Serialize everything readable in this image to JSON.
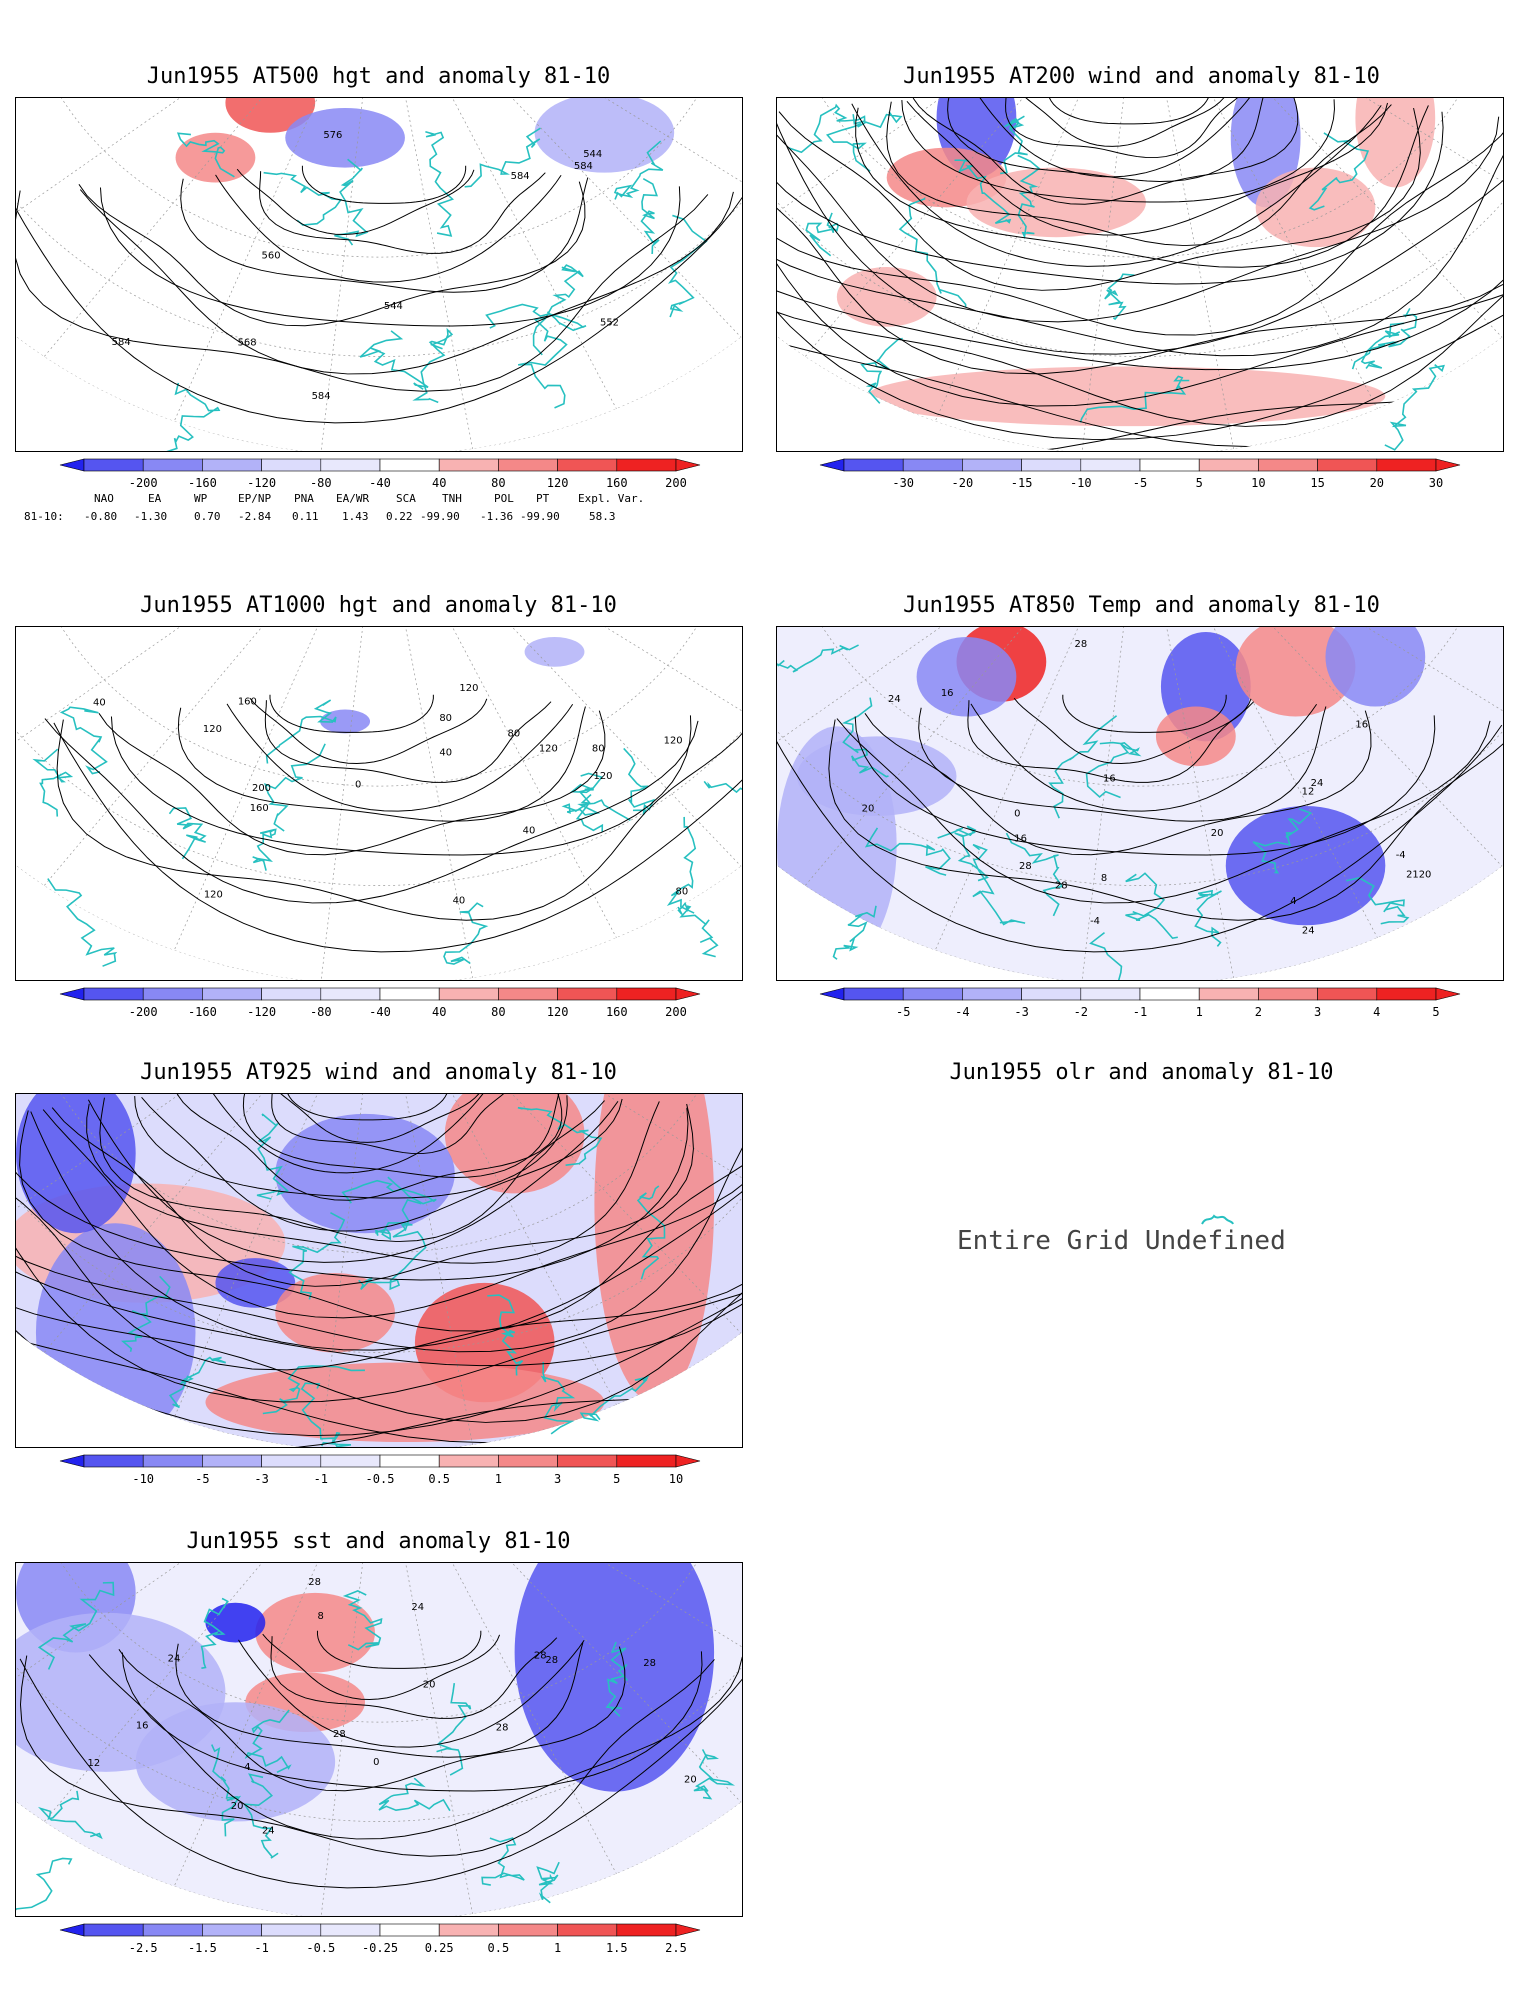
{
  "panels": [
    {
      "id": "p1",
      "title": "Jun1955 AT500 hgt and anomaly 81-10",
      "contours": [
        "584",
        "544",
        "552",
        "560",
        "568",
        "576",
        "584",
        "584",
        "584",
        "544"
      ],
      "colorbar": [
        "-200",
        "-160",
        "-120",
        "-80",
        "-40",
        "40",
        "80",
        "120",
        "160",
        "200"
      ]
    },
    {
      "id": "p2",
      "title": "Jun1955 AT200 wind and anomaly 81-10",
      "contours": [],
      "colorbar": [
        "-30",
        "-20",
        "-15",
        "-10",
        "-5",
        "5",
        "10",
        "15",
        "20",
        "30"
      ]
    },
    {
      "id": "p3",
      "title": "Jun1955 AT1000 hgt and anomaly 81-10",
      "contours": [
        "120",
        "160",
        "200",
        "160",
        "120",
        "120",
        "80",
        "80",
        "80",
        "120",
        "80",
        "40",
        "40",
        "0",
        "40",
        "120",
        "120",
        "40"
      ],
      "colorbar": [
        "-200",
        "-160",
        "-120",
        "-80",
        "-40",
        "40",
        "80",
        "120",
        "160",
        "200"
      ]
    },
    {
      "id": "p4",
      "title": "Jun1955 AT850 Temp and anomaly 81-10",
      "contours": [
        "20",
        "-4",
        "-4",
        "0",
        "4",
        "8",
        "12",
        "16",
        "24",
        "28",
        "28",
        "24",
        "16",
        "16",
        "24",
        "20",
        "16",
        "28",
        "2120"
      ],
      "colorbar": [
        "-5",
        "-4",
        "-3",
        "-2",
        "-1",
        "1",
        "2",
        "3",
        "4",
        "5"
      ]
    },
    {
      "id": "p5",
      "title": "Jun1955 AT925 wind and anomaly 81-10",
      "contours": [],
      "colorbar": [
        "-10",
        "-5",
        "-3",
        "-1",
        "-0.5",
        "0.5",
        "1",
        "3",
        "5",
        "10"
      ]
    },
    {
      "id": "p6",
      "title": "Jun1955 olr and anomaly 81-10",
      "contours": [],
      "colorbar": []
    },
    {
      "id": "p7",
      "title": "Jun1955 sst and anomaly 81-10",
      "contours": [
        "24",
        "28",
        "28",
        "4",
        "8",
        "12",
        "16",
        "20",
        "24",
        "28",
        "28",
        "28",
        "28",
        "20",
        "24",
        "20",
        "0"
      ],
      "colorbar": [
        "-2.5",
        "-1.5",
        "-1",
        "-0.5",
        "-0.25",
        "0.25",
        "0.5",
        "1",
        "1.5",
        "2.5"
      ]
    }
  ],
  "teleconnections": {
    "row_label": "81-10:",
    "headers": [
      "NAO",
      "EA",
      "WP",
      "EP/NP",
      "PNA",
      "EA/WR",
      "SCA",
      "TNH",
      "POL",
      "PT",
      "Expl. Var."
    ],
    "values": [
      "-0.80",
      "-1.30",
      "0.70",
      "-2.84",
      "0.11",
      "1.43",
      "0.22",
      "-99.90",
      "-1.36",
      "-99.90",
      "58.3"
    ]
  },
  "undefined_text": "Entire Grid Undefined",
  "colors": {
    "coast": "#27c0c0",
    "blue_ramp": [
      "#2222ee",
      "#5555f0",
      "#8888f4",
      "#b2b2f8",
      "#dcdcfc"
    ],
    "red_ramp": [
      "#fcdcdc",
      "#f8b2b2",
      "#f48888",
      "#f05555",
      "#ee2222"
    ]
  }
}
